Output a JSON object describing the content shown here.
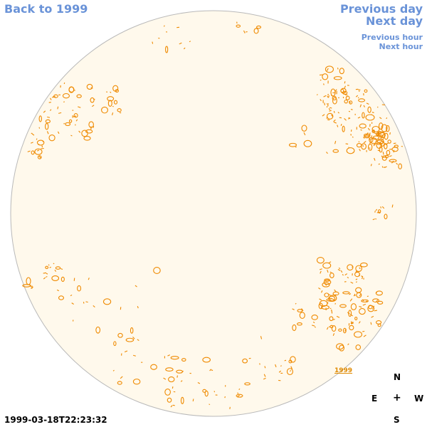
{
  "nav": {
    "back_label": "Back to 1999",
    "prev_day_label": "Previous day",
    "next_day_label": "Next day",
    "prev_hour_label": "Previous hour",
    "next_hour_label": "Next hour"
  },
  "timestamp": "1999-03-18T22:23:32",
  "year_marker": "1999",
  "compass": {
    "n": "N",
    "e": "E",
    "center": "+",
    "w": "W",
    "s": "S"
  },
  "colors": {
    "disk_fill": "#fff9ec",
    "disk_border": "#b9b9b9",
    "feature": "#ef8a00",
    "link": "#6a93d8"
  }
}
